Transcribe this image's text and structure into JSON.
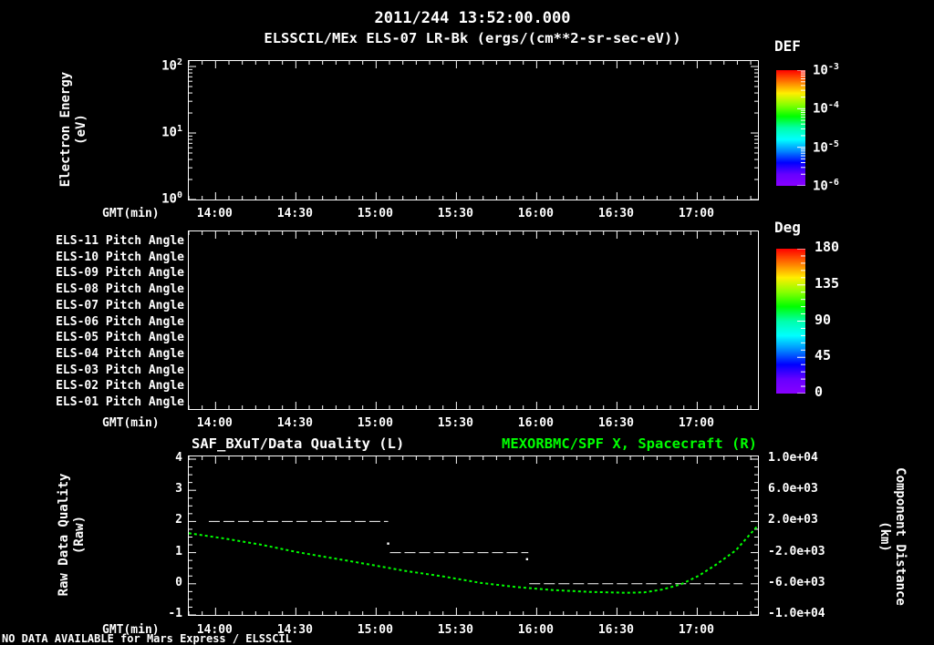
{
  "header": {
    "title": "2011/244 13:52:00.000",
    "subtitle": "ELSSCIL/MEx ELS-07 LR-Bk  (ergs/(cm**2-sr-sec-eV))"
  },
  "footer": {
    "note": "NO DATA AVAILABLE for Mars Express / ELSSCIL"
  },
  "colors": {
    "foreground": "#ffffff",
    "background": "#000000",
    "series_green": "#00ff00",
    "rainbow": [
      "#ff0000",
      "#ff7700",
      "#ffee00",
      "#88ff00",
      "#00ff00",
      "#00ffaa",
      "#00ffff",
      "#0088ff",
      "#0000ff",
      "#6600ff",
      "#8800ff"
    ]
  },
  "time_axis": {
    "label": "GMT(min)",
    "start_min": 830,
    "end_min": 1042.7,
    "major_minutes": [
      840,
      870,
      900,
      930,
      960,
      990,
      1020
    ],
    "major_labels": [
      "14:00",
      "14:30",
      "15:00",
      "15:30",
      "16:00",
      "16:30",
      "17:00"
    ],
    "minor_step_min": 5
  },
  "chart_data": [
    {
      "type": "heatmap",
      "title": "ELSSCIL/MEx ELS-07 LR-Bk (ergs/(cm**2-sr-sec-eV))",
      "ylabel_lines": [
        "Electron Energy",
        "(eV)"
      ],
      "yscale": "log",
      "ylim": [
        1,
        120
      ],
      "ytick_exponents": [
        2,
        1,
        0
      ],
      "values": [],
      "no_data": true,
      "colorbar": {
        "label": "DEF",
        "scale": "log",
        "tick_exponents": [
          -3,
          -4,
          -5,
          -6
        ],
        "range": [
          1e-06,
          0.001
        ]
      }
    },
    {
      "type": "heatmap",
      "rows": [
        "ELS-11 Pitch Angle",
        "ELS-10 Pitch Angle",
        "ELS-09 Pitch Angle",
        "ELS-08 Pitch Angle",
        "ELS-07 Pitch Angle",
        "ELS-06 Pitch Angle",
        "ELS-05 Pitch Angle",
        "ELS-04 Pitch Angle",
        "ELS-03 Pitch Angle",
        "ELS-02 Pitch Angle",
        "ELS-01 Pitch Angle"
      ],
      "values": [],
      "no_data": true,
      "colorbar": {
        "label": "Deg",
        "tick_labels": [
          "180",
          "135",
          "90",
          "45",
          "0"
        ],
        "range": [
          0,
          180
        ]
      }
    },
    {
      "type": "line",
      "title_left": "SAF_BXuT/Data Quality (L)",
      "title_right": "MEXORBMC/SPF X, Spacecraft (R)",
      "xlabel": "GMT(min)",
      "xticks": [
        "14:00",
        "14:30",
        "15:00",
        "15:30",
        "16:00",
        "16:30",
        "17:00"
      ],
      "x_range": [
        "13:50",
        "17:23"
      ],
      "ylabel_left_lines": [
        "Raw Data Quality",
        "(Raw)"
      ],
      "ylabel_right_lines": [
        "Component Distance",
        "(km)"
      ],
      "yticks_left": [
        "4",
        "3",
        "2",
        "1",
        "0",
        "-1"
      ],
      "yticks_right": [
        "1.0e+04",
        "6.0e+03",
        "2.0e+03",
        "-2.0e+03",
        "-6.0e+03",
        "-1.0e+04"
      ],
      "ylim_left": [
        -1,
        4
      ],
      "ylim_right": [
        -10000,
        10000
      ],
      "series": [
        {
          "name": "SAF_BXuT/Data Quality (L)",
          "axis": "left",
          "color": "#ffffff",
          "style": "dashed-steps",
          "segments": [
            {
              "value": 2,
              "t_start": 13.958,
              "t_end": 15.075
            },
            {
              "value": 1,
              "t_start": 15.086,
              "t_end": 15.948
            },
            {
              "value": 0,
              "t_start": 15.954,
              "t_end": 17.283
            }
          ],
          "transition_points": [
            {
              "t": 15.075,
              "value": 1.29
            },
            {
              "t": 15.94,
              "value": 0.79
            }
          ]
        },
        {
          "name": "MEXORBMC/SPF X, Spacecraft (R)",
          "axis": "right",
          "color": "#00ff00",
          "style": "dotted",
          "units": "km",
          "points": [
            [
              13.833,
              490
            ],
            [
              14.06,
              -200
            ],
            [
              14.29,
              -1010
            ],
            [
              14.51,
              -1940
            ],
            [
              14.74,
              -2750
            ],
            [
              14.97,
              -3570
            ],
            [
              15.19,
              -4380
            ],
            [
              15.42,
              -5070
            ],
            [
              15.65,
              -5880
            ],
            [
              15.87,
              -6410
            ],
            [
              16.1,
              -6810
            ],
            [
              16.33,
              -7040
            ],
            [
              16.56,
              -7160
            ],
            [
              16.67,
              -7100
            ],
            [
              16.78,
              -6750
            ],
            [
              16.9,
              -6060
            ],
            [
              17.01,
              -4960
            ],
            [
              17.12,
              -3510
            ],
            [
              17.24,
              -1710
            ],
            [
              17.37,
              1300
            ]
          ]
        }
      ]
    }
  ]
}
